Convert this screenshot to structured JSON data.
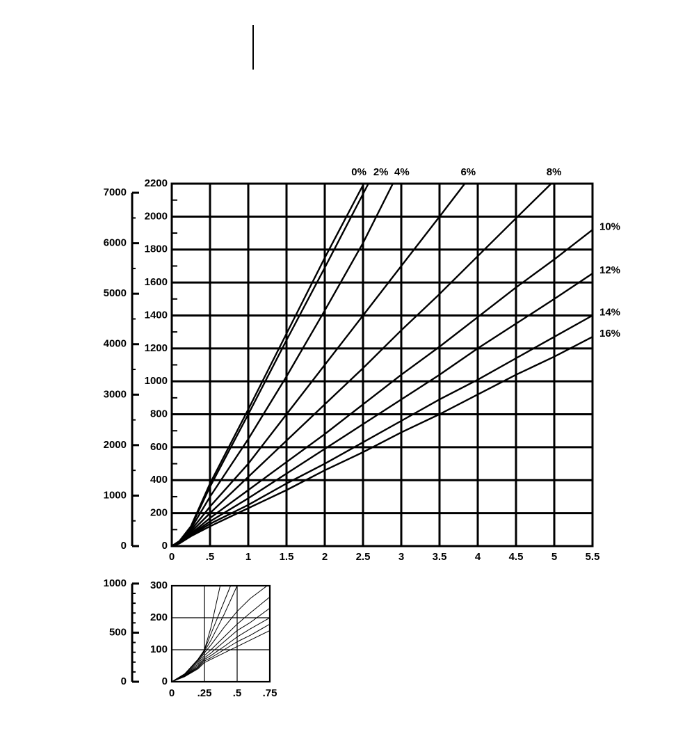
{
  "chart_data": [
    {
      "type": "line",
      "grid": true,
      "xlim": [
        0,
        5.5
      ],
      "xticks": [
        0,
        {
          "value": 0.5,
          "label": ".5"
        },
        1,
        1.5,
        2,
        2.5,
        3,
        3.5,
        4,
        4.5,
        5,
        5.5
      ],
      "ylim": [
        0,
        2200
      ],
      "yticks": [
        0,
        200,
        400,
        600,
        800,
        1000,
        1200,
        1400,
        1600,
        1800,
        2000,
        2200
      ],
      "yminorticks": [
        100,
        300,
        500,
        700,
        900,
        1100,
        1300,
        1500,
        1700,
        1900,
        2100
      ],
      "y2lim": [
        0,
        7180
      ],
      "y2ticks": [
        0,
        1000,
        2000,
        3000,
        4000,
        5000,
        6000,
        7000
      ],
      "y2minorticks": [
        500,
        1500,
        2500,
        3500,
        4500,
        5500,
        6500
      ],
      "series": [
        {
          "name": "0%",
          "color": "#000000",
          "x": [
            0,
            0.1,
            0.25,
            0.5,
            1,
            1.5,
            2,
            2.51
          ],
          "values": [
            0,
            30,
            120,
            380,
            830,
            1290,
            1750,
            2200
          ]
        },
        {
          "name": "2%",
          "color": "#000000",
          "x": [
            0,
            0.1,
            0.25,
            0.5,
            1,
            1.5,
            2,
            2.57
          ],
          "values": [
            0,
            30,
            115,
            360,
            800,
            1250,
            1690,
            2200
          ]
        },
        {
          "name": "4%",
          "color": "#000000",
          "x": [
            0,
            0.1,
            0.25,
            0.5,
            1,
            1.5,
            2,
            2.5,
            2.89
          ],
          "values": [
            0,
            28,
            105,
            300,
            650,
            1030,
            1430,
            1840,
            2200
          ]
        },
        {
          "name": "6%",
          "color": "#000000",
          "x": [
            0,
            0.1,
            0.25,
            0.5,
            1,
            1.5,
            2,
            2.5,
            3,
            3.5,
            3.83
          ],
          "values": [
            0,
            25,
            95,
            240,
            500,
            800,
            1100,
            1400,
            1700,
            2000,
            2200
          ]
        },
        {
          "name": "8%",
          "color": "#000000",
          "x": [
            0,
            0.1,
            0.25,
            0.5,
            1,
            1.5,
            2,
            2.5,
            3,
            3.5,
            4,
            4.5,
            4.96
          ],
          "values": [
            0,
            22,
            85,
            200,
            420,
            640,
            860,
            1080,
            1310,
            1530,
            1760,
            1990,
            2200
          ]
        },
        {
          "name": "10%",
          "color": "#000000",
          "x": [
            0,
            0.1,
            0.25,
            0.5,
            1,
            1.5,
            2,
            2.5,
            3,
            3.5,
            4,
            4.5,
            5,
            5.5
          ],
          "values": [
            0,
            22,
            75,
            170,
            340,
            510,
            680,
            860,
            1040,
            1210,
            1390,
            1570,
            1740,
            1920
          ]
        },
        {
          "name": "12%",
          "color": "#000000",
          "x": [
            0,
            0.1,
            0.25,
            0.5,
            1,
            1.5,
            2,
            2.5,
            3,
            3.5,
            4,
            4.5,
            5,
            5.5
          ],
          "values": [
            0,
            20,
            70,
            150,
            290,
            440,
            590,
            740,
            890,
            1040,
            1200,
            1350,
            1500,
            1655
          ]
        },
        {
          "name": "14%",
          "color": "#000000",
          "x": [
            0,
            0.1,
            0.25,
            0.5,
            1,
            1.5,
            2,
            2.5,
            3,
            3.5,
            4,
            4.5,
            5,
            5.5
          ],
          "values": [
            0,
            18,
            65,
            135,
            250,
            380,
            500,
            630,
            760,
            890,
            1010,
            1140,
            1270,
            1400
          ]
        },
        {
          "name": "16%",
          "color": "#000000",
          "x": [
            0,
            0.1,
            0.25,
            0.5,
            1,
            1.5,
            2,
            2.5,
            3,
            3.5,
            4,
            4.5,
            5,
            5.5
          ],
          "values": [
            0,
            16,
            60,
            120,
            230,
            340,
            460,
            570,
            690,
            800,
            920,
            1040,
            1150,
            1270
          ]
        }
      ]
    },
    {
      "type": "line",
      "grid": true,
      "xlim": [
        0,
        0.75
      ],
      "xticks": [
        0,
        {
          "value": 0.25,
          "label": ".25"
        },
        {
          "value": 0.5,
          "label": ".5"
        },
        {
          "value": 0.75,
          "label": ".75"
        }
      ],
      "ylim": [
        0,
        300
      ],
      "yticks": [
        0,
        100,
        200,
        300
      ],
      "y2lim": [
        0,
        978
      ],
      "y2ticks": [
        0,
        500,
        1000
      ],
      "y2minorticks": [
        100,
        200,
        300,
        400,
        600,
        700,
        800,
        900
      ],
      "series": [
        {
          "color": "#000000",
          "x": [
            0,
            0.1,
            0.2,
            0.25,
            0.3,
            0.37
          ],
          "values": [
            0,
            25,
            70,
            100,
            170,
            300
          ]
        },
        {
          "color": "#000000",
          "x": [
            0,
            0.1,
            0.2,
            0.25,
            0.3,
            0.4,
            0.45
          ],
          "values": [
            0,
            25,
            68,
            98,
            150,
            250,
            300
          ]
        },
        {
          "color": "#000000",
          "x": [
            0,
            0.1,
            0.2,
            0.25,
            0.3,
            0.4,
            0.5
          ],
          "values": [
            0,
            24,
            65,
            95,
            130,
            210,
            300
          ]
        },
        {
          "color": "#000000",
          "x": [
            0,
            0.1,
            0.2,
            0.25,
            0.3,
            0.4,
            0.5,
            0.6,
            0.73
          ],
          "values": [
            0,
            22,
            60,
            90,
            115,
            170,
            220,
            260,
            300
          ]
        },
        {
          "color": "#000000",
          "x": [
            0,
            0.1,
            0.2,
            0.25,
            0.3,
            0.4,
            0.5,
            0.6,
            0.75
          ],
          "values": [
            0,
            20,
            55,
            82,
            100,
            140,
            180,
            215,
            265
          ]
        },
        {
          "color": "#000000",
          "x": [
            0,
            0.1,
            0.2,
            0.25,
            0.3,
            0.4,
            0.5,
            0.6,
            0.75
          ],
          "values": [
            0,
            19,
            50,
            75,
            90,
            125,
            160,
            185,
            230
          ]
        },
        {
          "color": "#000000",
          "x": [
            0,
            0.1,
            0.2,
            0.25,
            0.3,
            0.4,
            0.5,
            0.6,
            0.75
          ],
          "values": [
            0,
            18,
            46,
            70,
            82,
            110,
            140,
            165,
            200
          ]
        },
        {
          "color": "#000000",
          "x": [
            0,
            0.1,
            0.2,
            0.25,
            0.3,
            0.4,
            0.5,
            0.6,
            0.75
          ],
          "values": [
            0,
            17,
            43,
            65,
            75,
            100,
            125,
            145,
            180
          ]
        },
        {
          "color": "#000000",
          "x": [
            0,
            0.1,
            0.2,
            0.25,
            0.3,
            0.4,
            0.5,
            0.6,
            0.75
          ],
          "values": [
            0,
            16,
            40,
            60,
            70,
            90,
            110,
            130,
            160
          ]
        }
      ]
    }
  ]
}
